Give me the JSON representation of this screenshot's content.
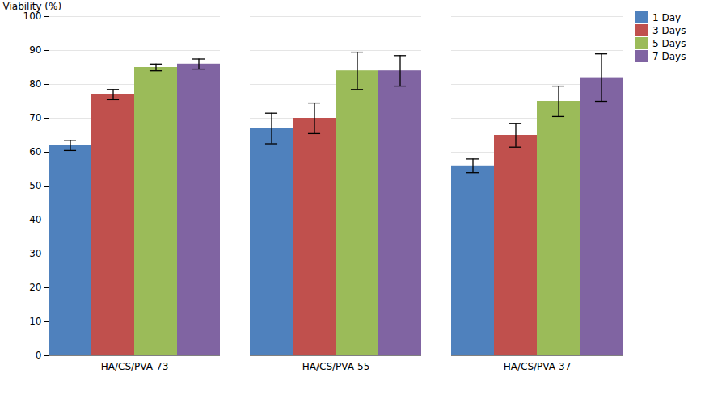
{
  "chart_data": {
    "type": "bar",
    "categories": [
      "HA/CS/PVA-73",
      "HA/CS/PVA-55",
      "HA/CS/PVA-37"
    ],
    "series": [
      {
        "name": "1 Day",
        "color": "#4F81BD",
        "values": [
          62,
          67,
          56
        ],
        "errors": [
          1.5,
          4.5,
          2.0
        ]
      },
      {
        "name": "3 Days",
        "color": "#C0504D",
        "values": [
          77,
          70,
          65
        ],
        "errors": [
          1.5,
          4.5,
          3.5
        ]
      },
      {
        "name": "5 Days",
        "color": "#9BBB59",
        "values": [
          85,
          84,
          75
        ],
        "errors": [
          1.0,
          5.5,
          4.5
        ]
      },
      {
        "name": "7 Days",
        "color": "#8064A2",
        "values": [
          86,
          84,
          82
        ],
        "errors": [
          1.5,
          4.5,
          7.0
        ]
      }
    ],
    "ylabel": "Viability (%)",
    "ylim": [
      0,
      100
    ],
    "yticks": [
      0,
      10,
      20,
      30,
      40,
      50,
      60,
      70,
      80,
      90,
      100
    ],
    "grid": true,
    "legend": "right"
  }
}
